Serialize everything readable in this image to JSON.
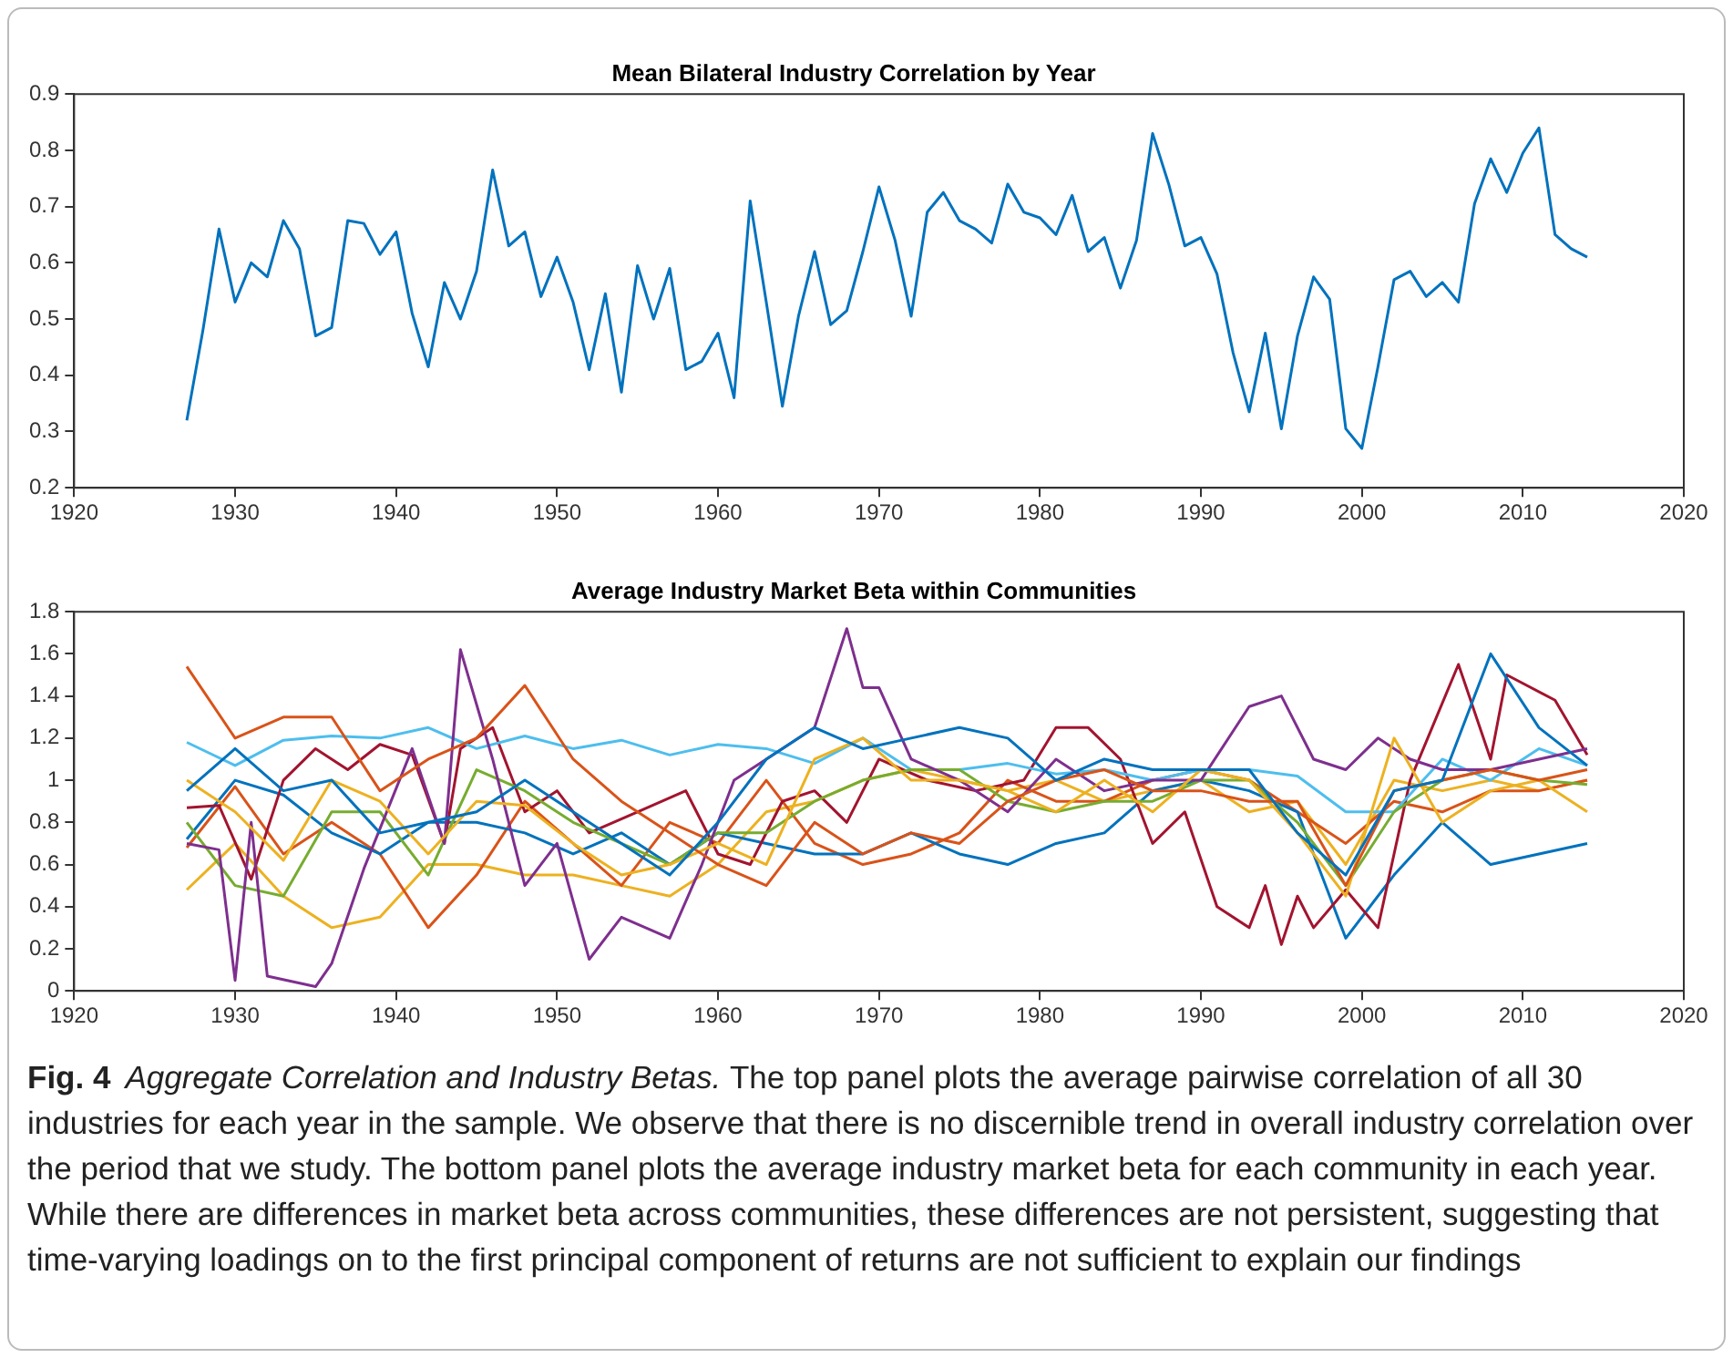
{
  "chart_data": [
    {
      "type": "line",
      "title": "Mean Bilateral Industry Correlation by Year",
      "xlim": [
        1920,
        2020
      ],
      "xticks": [
        1920,
        1930,
        1940,
        1950,
        1960,
        1970,
        1980,
        1990,
        2000,
        2010,
        2020
      ],
      "ylim": [
        0.2,
        0.9
      ],
      "yticks": [
        0.2,
        0.3,
        0.4,
        0.5,
        0.6,
        0.7,
        0.8,
        0.9
      ],
      "grid": false,
      "legend": false,
      "marker": "none",
      "x": [
        1927,
        1928,
        1929,
        1930,
        1931,
        1932,
        1933,
        1934,
        1935,
        1936,
        1937,
        1938,
        1939,
        1940,
        1941,
        1942,
        1943,
        1944,
        1945,
        1946,
        1947,
        1948,
        1949,
        1950,
        1951,
        1952,
        1953,
        1954,
        1955,
        1956,
        1957,
        1958,
        1959,
        1960,
        1961,
        1962,
        1963,
        1964,
        1965,
        1966,
        1967,
        1968,
        1969,
        1970,
        1971,
        1972,
        1973,
        1974,
        1975,
        1976,
        1977,
        1978,
        1979,
        1980,
        1981,
        1982,
        1983,
        1984,
        1985,
        1986,
        1987,
        1988,
        1989,
        1990,
        1991,
        1992,
        1993,
        1994,
        1995,
        1996,
        1997,
        1998,
        1999,
        2000,
        2001,
        2002,
        2003,
        2004,
        2005,
        2006,
        2007,
        2008,
        2009,
        2010,
        2011,
        2012,
        2013,
        2014
      ],
      "series": [
        {
          "color": "#0072bd",
          "values": [
            0.32,
            0.48,
            0.66,
            0.53,
            0.6,
            0.575,
            0.675,
            0.625,
            0.47,
            0.485,
            0.675,
            0.67,
            0.615,
            0.655,
            0.51,
            0.415,
            0.565,
            0.5,
            0.585,
            0.765,
            0.63,
            0.655,
            0.54,
            0.61,
            0.53,
            0.41,
            0.545,
            0.37,
            0.595,
            0.5,
            0.59,
            0.41,
            0.425,
            0.475,
            0.36,
            0.71,
            0.53,
            0.345,
            0.505,
            0.62,
            0.49,
            0.515,
            0.62,
            0.735,
            0.64,
            0.505,
            0.69,
            0.725,
            0.675,
            0.66,
            0.635,
            0.74,
            0.69,
            0.68,
            0.65,
            0.72,
            0.62,
            0.645,
            0.555,
            0.64,
            0.83,
            0.74,
            0.63,
            0.645,
            0.58,
            0.44,
            0.335,
            0.475,
            0.305,
            0.47,
            0.575,
            0.535,
            0.305,
            0.27,
            0.415,
            0.57,
            0.585,
            0.54,
            0.565,
            0.53,
            0.705,
            0.785,
            0.725,
            0.795,
            0.84,
            0.65,
            0.625,
            0.61
          ]
        }
      ]
    },
    {
      "type": "line",
      "title": "Average Industry Market Beta within Communities",
      "xlim": [
        1920,
        2020
      ],
      "xticks": [
        1920,
        1930,
        1940,
        1950,
        1960,
        1970,
        1980,
        1990,
        2000,
        2010,
        2020
      ],
      "ylim": [
        0,
        1.8
      ],
      "yticks": [
        0,
        0.2,
        0.4,
        0.6,
        0.8,
        1,
        1.2,
        1.4,
        1.6,
        1.8
      ],
      "grid": false,
      "legend": false,
      "marker": "none",
      "x": [
        1927,
        1930,
        1933,
        1936,
        1939,
        1942,
        1945,
        1948,
        1951,
        1954,
        1957,
        1960,
        1963,
        1966,
        1969,
        1972,
        1975,
        1978,
        1981,
        1984,
        1987,
        1990,
        1993,
        1996,
        1999,
        2002,
        2005,
        2008,
        2011,
        2014
      ],
      "series": [
        {
          "color": "#0072bd",
          "values": [
            0.95,
            1.15,
            0.95,
            1.0,
            0.75,
            0.8,
            0.85,
            1.0,
            0.85,
            0.7,
            0.55,
            0.8,
            1.1,
            1.25,
            1.15,
            1.2,
            1.25,
            1.2,
            1.0,
            1.1,
            1.05,
            1.05,
            1.05,
            0.75,
            0.55,
            0.95,
            1.0,
            1.6,
            1.25,
            1.07
          ]
        },
        {
          "color": "#d95319",
          "values": [
            1.54,
            1.2,
            1.3,
            1.3,
            0.95,
            1.1,
            1.2,
            1.45,
            1.1,
            0.9,
            0.75,
            0.6,
            0.5,
            0.8,
            0.65,
            0.75,
            0.7,
            0.9,
            1.0,
            1.05,
            0.95,
            0.95,
            0.9,
            0.9,
            0.5,
            0.95,
            1.0,
            1.05,
            1.0,
            1.05
          ]
        },
        {
          "color": "#edb120",
          "values": [
            1.0,
            0.85,
            0.62,
            1.0,
            0.9,
            0.65,
            0.9,
            0.88,
            0.7,
            0.55,
            0.6,
            0.7,
            0.6,
            1.1,
            1.2,
            1.0,
            1.0,
            0.95,
            0.85,
            1.0,
            0.85,
            1.05,
            1.0,
            0.75,
            0.45,
            1.2,
            0.8,
            0.95,
            1.0,
            0.85
          ]
        },
        {
          "color": "#7e2f8e",
          "x": [
            1927,
            1929,
            1930,
            1931,
            1932,
            1935,
            1936,
            1938,
            1941,
            1943,
            1944,
            1946,
            1948,
            1950,
            1952,
            1954,
            1957,
            1959,
            1961,
            1963,
            1966,
            1968,
            1969,
            1970,
            1972,
            1975,
            1978,
            1981,
            1984,
            1987,
            1990,
            1993,
            1995,
            1997,
            1999,
            2001,
            2003,
            2005,
            2008,
            2011,
            2014
          ],
          "values": [
            0.7,
            0.67,
            0.05,
            0.8,
            0.07,
            0.02,
            0.13,
            0.58,
            1.15,
            0.7,
            1.62,
            1.1,
            0.5,
            0.7,
            0.15,
            0.35,
            0.25,
            0.6,
            1.0,
            1.1,
            1.25,
            1.72,
            1.44,
            1.44,
            1.1,
            1.0,
            0.85,
            1.1,
            0.95,
            1.0,
            1.0,
            1.35,
            1.4,
            1.1,
            1.05,
            1.2,
            1.1,
            1.05,
            1.05,
            1.1,
            1.15
          ]
        },
        {
          "color": "#77ac30",
          "values": [
            0.8,
            0.5,
            0.45,
            0.85,
            0.85,
            0.55,
            1.05,
            0.95,
            0.8,
            0.7,
            0.6,
            0.75,
            0.75,
            0.9,
            1.0,
            1.05,
            1.05,
            0.9,
            0.85,
            0.9,
            0.9,
            1.0,
            1.0,
            0.8,
            0.5,
            0.85,
            1.0,
            1.05,
            1.0,
            0.98
          ]
        },
        {
          "color": "#4dbeee",
          "values": [
            1.18,
            1.07,
            1.19,
            1.21,
            1.2,
            1.25,
            1.15,
            1.21,
            1.15,
            1.19,
            1.12,
            1.17,
            1.15,
            1.08,
            1.2,
            1.05,
            1.05,
            1.08,
            1.03,
            1.05,
            1.0,
            1.05,
            1.05,
            1.02,
            0.85,
            0.85,
            1.1,
            1.0,
            1.15,
            1.07
          ]
        },
        {
          "color": "#a2142f",
          "x": [
            1927,
            1929,
            1931,
            1933,
            1935,
            1937,
            1939,
            1941,
            1943,
            1944,
            1946,
            1948,
            1950,
            1952,
            1955,
            1958,
            1960,
            1962,
            1964,
            1966,
            1968,
            1970,
            1973,
            1976,
            1979,
            1981,
            1983,
            1985,
            1987,
            1989,
            1991,
            1993,
            1994,
            1995,
            1996,
            1997,
            1999,
            2001,
            2003,
            2006,
            2008,
            2009,
            2012,
            2014
          ],
          "values": [
            0.87,
            0.88,
            0.53,
            1.0,
            1.15,
            1.05,
            1.17,
            1.12,
            0.7,
            1.15,
            1.25,
            0.85,
            0.95,
            0.75,
            0.85,
            0.95,
            0.65,
            0.6,
            0.9,
            0.95,
            0.8,
            1.1,
            1.0,
            0.95,
            1.0,
            1.25,
            1.25,
            1.1,
            0.7,
            0.85,
            0.4,
            0.3,
            0.5,
            0.22,
            0.45,
            0.3,
            0.48,
            0.3,
            1.0,
            1.55,
            1.1,
            1.5,
            1.38,
            1.12
          ]
        },
        {
          "color": "#0072bd",
          "values": [
            0.72,
            1.0,
            0.93,
            0.75,
            0.65,
            0.8,
            0.8,
            0.75,
            0.65,
            0.75,
            0.6,
            0.75,
            0.7,
            0.65,
            0.65,
            0.75,
            0.65,
            0.6,
            0.7,
            0.75,
            0.95,
            1.0,
            0.95,
            0.85,
            0.25,
            0.55,
            0.8,
            0.6,
            0.65,
            0.7
          ]
        },
        {
          "color": "#d95319",
          "values": [
            0.68,
            0.97,
            0.65,
            0.8,
            0.65,
            0.3,
            0.55,
            0.9,
            0.7,
            0.5,
            0.8,
            0.7,
            1.0,
            0.7,
            0.6,
            0.65,
            0.75,
            1.0,
            0.9,
            0.9,
            1.0,
            1.05,
            1.0,
            0.85,
            0.7,
            0.9,
            0.85,
            0.95,
            0.95,
            1.0
          ]
        },
        {
          "color": "#edb120",
          "values": [
            0.48,
            0.7,
            0.45,
            0.3,
            0.35,
            0.6,
            0.6,
            0.55,
            0.55,
            0.5,
            0.45,
            0.6,
            0.85,
            0.9,
            1.0,
            1.05,
            1.0,
            0.95,
            1.0,
            0.9,
            0.95,
            1.0,
            0.85,
            0.9,
            0.6,
            1.0,
            0.95,
            1.0,
            0.95,
            1.0
          ]
        }
      ],
      "annotations": [
        "Fig. 4",
        "Aggregate Correlation and Industry Betas.",
        "The top panel plots the average pairwise correlation of all 30 industries for each year in the sample. We observe that there is no discernible trend in overall industry correlation over the period that we study. The bottom panel plots the average industry market beta for each community in each year. While there are differences in market beta across communities, these differences are not persistent, suggesting that time-varying loadings on to the first principal component of returns are not sufficient to explain our findings"
      ]
    }
  ]
}
